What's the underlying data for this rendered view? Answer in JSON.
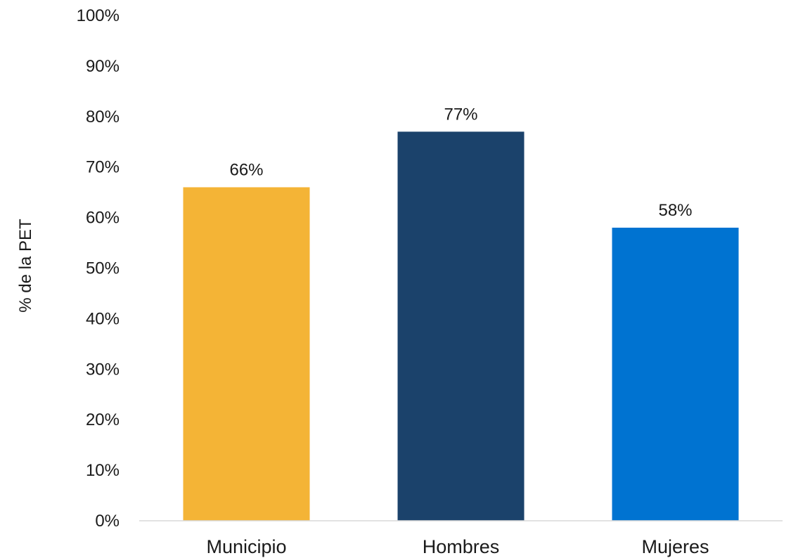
{
  "chart_data": {
    "type": "bar",
    "title": "",
    "xlabel": "",
    "ylabel": "% de la PET",
    "categories": [
      "Municipio",
      "Hombres",
      "Mujeres"
    ],
    "values": [
      66,
      77,
      58
    ],
    "data_labels": [
      "66%",
      "77%",
      "58%"
    ],
    "colors": [
      "#F4B436",
      "#1B426B",
      "#0073D1"
    ],
    "ylim": [
      0,
      100
    ],
    "ytick_values": [
      0,
      10,
      20,
      30,
      40,
      50,
      60,
      70,
      80,
      90,
      100
    ],
    "ytick_labels": [
      "0%",
      "10%",
      "20%",
      "30%",
      "40%",
      "50%",
      "60%",
      "70%",
      "80%",
      "90%",
      "100%"
    ],
    "grid": false,
    "legend": "none",
    "axis_color": "#d9d9d9"
  }
}
